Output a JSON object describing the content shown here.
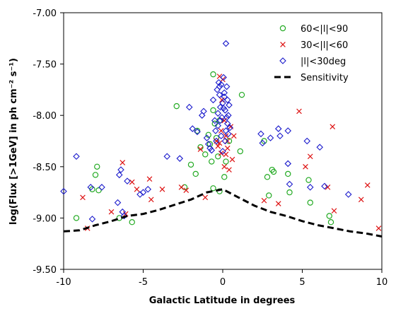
{
  "chart_data": {
    "type": "scatter",
    "title": "",
    "xlabel": "Galactic Latitude in degrees",
    "ylabel": "log(Flux [>1GeV] in ph cm⁻² s⁻¹)",
    "xlim": [
      -10,
      10
    ],
    "ylim": [
      -9.5,
      -7.0
    ],
    "xticks": [
      "-10",
      "-5",
      "0",
      "5",
      "10"
    ],
    "yticks": [
      "-9.50",
      "-9.00",
      "-8.50",
      "-8.00",
      "-7.50",
      "-7.00"
    ],
    "grid": false,
    "legend_placement": "top-right",
    "colors": {
      "green": "#22aa22",
      "red": "#dd1111",
      "blue": "#1a1acc",
      "sensitivity": "#000000"
    },
    "series": [
      {
        "name": "60<|l|<90",
        "marker": "circle",
        "points": [
          [
            -9.2,
            -9.0
          ],
          [
            -7.9,
            -8.5
          ],
          [
            -8.0,
            -8.58
          ],
          [
            -7.8,
            -8.73
          ],
          [
            -8.2,
            -8.72
          ],
          [
            -6.5,
            -9.0
          ],
          [
            -5.7,
            -9.04
          ],
          [
            -2.9,
            -7.91
          ],
          [
            -2.0,
            -8.48
          ],
          [
            -1.6,
            -8.15
          ],
          [
            -1.4,
            -8.31
          ],
          [
            -1.1,
            -8.38
          ],
          [
            -1.7,
            -8.57
          ],
          [
            -0.9,
            -8.19
          ],
          [
            -0.8,
            -8.28
          ],
          [
            -0.6,
            -7.95
          ],
          [
            -0.5,
            -8.08
          ],
          [
            -0.4,
            -8.22
          ],
          [
            -0.3,
            -8.4
          ],
          [
            -0.2,
            -8.05
          ],
          [
            -0.7,
            -8.45
          ],
          [
            -0.6,
            -7.6
          ],
          [
            -0.6,
            -8.71
          ],
          [
            -0.2,
            -8.74
          ],
          [
            0.1,
            -8.6
          ],
          [
            0.2,
            -8.45
          ],
          [
            0.4,
            -8.25
          ],
          [
            1.1,
            -8.35
          ],
          [
            1.2,
            -7.8
          ],
          [
            2.6,
            -8.25
          ],
          [
            2.8,
            -8.6
          ],
          [
            2.9,
            -8.78
          ],
          [
            3.1,
            -8.53
          ],
          [
            3.2,
            -8.55
          ],
          [
            4.1,
            -8.57
          ],
          [
            4.2,
            -8.75
          ],
          [
            5.4,
            -8.63
          ],
          [
            5.5,
            -8.85
          ],
          [
            6.7,
            -8.98
          ],
          [
            6.8,
            -9.04
          ],
          [
            -2.4,
            -8.7
          ]
        ]
      },
      {
        "name": "30<|l|<60",
        "marker": "x",
        "points": [
          [
            -8.8,
            -8.8
          ],
          [
            -8.5,
            -9.1
          ],
          [
            -7.0,
            -8.94
          ],
          [
            -6.1,
            -8.96
          ],
          [
            -6.3,
            -8.46
          ],
          [
            -5.7,
            -8.65
          ],
          [
            -5.4,
            -8.72
          ],
          [
            -4.6,
            -8.62
          ],
          [
            -4.5,
            -8.82
          ],
          [
            -3.8,
            -8.72
          ],
          [
            -2.6,
            -8.7
          ],
          [
            -2.3,
            -8.73
          ],
          [
            -1.4,
            -8.33
          ],
          [
            -1.1,
            -8.8
          ],
          [
            -0.3,
            -8.3
          ],
          [
            -0.2,
            -8.27
          ],
          [
            -0.1,
            -8.15
          ],
          [
            -0.2,
            -7.62
          ],
          [
            0.0,
            -7.65
          ],
          [
            -0.05,
            -7.85
          ],
          [
            0.1,
            -8.05
          ],
          [
            0.2,
            -8.2
          ],
          [
            0.3,
            -8.25
          ],
          [
            0.1,
            -8.5
          ],
          [
            0.4,
            -8.53
          ],
          [
            0.3,
            -8.32
          ],
          [
            0.6,
            -8.43
          ],
          [
            0.7,
            -8.2
          ],
          [
            0.2,
            -8.38
          ],
          [
            -0.4,
            -8.25
          ],
          [
            0.5,
            -8.11
          ],
          [
            -0.1,
            -8.37
          ],
          [
            2.6,
            -8.83
          ],
          [
            3.5,
            -8.86
          ],
          [
            4.8,
            -7.96
          ],
          [
            5.2,
            -8.5
          ],
          [
            5.5,
            -8.4
          ],
          [
            6.6,
            -8.7
          ],
          [
            7.0,
            -8.93
          ],
          [
            6.9,
            -8.11
          ],
          [
            8.7,
            -8.82
          ],
          [
            9.1,
            -8.68
          ],
          [
            9.8,
            -9.1
          ]
        ]
      },
      {
        "name": "|l|<30deg",
        "marker": "diamond",
        "points": [
          [
            -10.0,
            -8.74
          ],
          [
            -9.2,
            -8.4
          ],
          [
            -8.3,
            -8.7
          ],
          [
            -8.2,
            -9.01
          ],
          [
            -7.6,
            -8.7
          ],
          [
            -6.6,
            -8.85
          ],
          [
            -6.5,
            -8.58
          ],
          [
            -6.3,
            -8.94
          ],
          [
            -6.2,
            -8.98
          ],
          [
            -6.4,
            -8.53
          ],
          [
            -6.0,
            -8.64
          ],
          [
            -5.2,
            -8.77
          ],
          [
            -5.0,
            -8.75
          ],
          [
            -4.7,
            -8.72
          ],
          [
            -3.5,
            -8.4
          ],
          [
            -2.7,
            -8.42
          ],
          [
            -2.1,
            -7.92
          ],
          [
            -1.9,
            -8.13
          ],
          [
            -1.6,
            -8.16
          ],
          [
            -1.3,
            -8.0
          ],
          [
            -1.2,
            -7.96
          ],
          [
            -1.0,
            -8.22
          ],
          [
            -0.9,
            -8.28
          ],
          [
            -0.8,
            -8.32
          ],
          [
            -0.7,
            -8.34
          ],
          [
            -0.6,
            -7.85
          ],
          [
            -0.5,
            -8.05
          ],
          [
            -0.45,
            -8.15
          ],
          [
            -0.4,
            -8.25
          ],
          [
            -0.35,
            -7.75
          ],
          [
            -0.3,
            -7.98
          ],
          [
            -0.25,
            -7.68
          ],
          [
            -0.2,
            -7.8
          ],
          [
            -0.15,
            -7.92
          ],
          [
            -0.1,
            -7.7
          ],
          [
            -0.05,
            -8.02
          ],
          [
            0.0,
            -7.88
          ],
          [
            0.05,
            -7.63
          ],
          [
            0.1,
            -7.78
          ],
          [
            0.15,
            -7.95
          ],
          [
            0.2,
            -7.3
          ],
          [
            0.25,
            -7.72
          ],
          [
            0.3,
            -7.85
          ],
          [
            0.35,
            -8.0
          ],
          [
            0.4,
            -7.9
          ],
          [
            0.45,
            -8.12
          ],
          [
            0.15,
            -8.25
          ],
          [
            0.0,
            -8.35
          ],
          [
            -0.1,
            -8.2
          ],
          [
            0.2,
            -8.15
          ],
          [
            0.3,
            -8.08
          ],
          [
            0.1,
            -7.82
          ],
          [
            -0.2,
            -7.72
          ],
          [
            0.05,
            -7.93
          ],
          [
            -0.15,
            -8.05
          ],
          [
            0.25,
            -8.02
          ],
          [
            0.35,
            -8.18
          ],
          [
            -0.3,
            -8.1
          ],
          [
            2.4,
            -8.18
          ],
          [
            2.5,
            -8.27
          ],
          [
            3.0,
            -8.22
          ],
          [
            3.5,
            -8.13
          ],
          [
            3.6,
            -8.2
          ],
          [
            4.1,
            -8.15
          ],
          [
            4.1,
            -8.47
          ],
          [
            4.2,
            -8.67
          ],
          [
            5.3,
            -8.25
          ],
          [
            5.5,
            -8.7
          ],
          [
            6.1,
            -8.31
          ],
          [
            6.4,
            -8.69
          ],
          [
            7.9,
            -8.77
          ]
        ]
      },
      {
        "name": "Sensitivity",
        "marker": "dashed-line",
        "points": [
          [
            -10.0,
            -9.13
          ],
          [
            -9.0,
            -9.12
          ],
          [
            -8.0,
            -9.07
          ],
          [
            -7.0,
            -9.03
          ],
          [
            -6.0,
            -8.98
          ],
          [
            -5.0,
            -8.96
          ],
          [
            -4.0,
            -8.92
          ],
          [
            -3.0,
            -8.87
          ],
          [
            -2.0,
            -8.82
          ],
          [
            -1.0,
            -8.75
          ],
          [
            0.0,
            -8.72
          ],
          [
            1.0,
            -8.8
          ],
          [
            2.0,
            -8.88
          ],
          [
            3.0,
            -8.94
          ],
          [
            4.0,
            -8.98
          ],
          [
            5.0,
            -9.03
          ],
          [
            6.0,
            -9.07
          ],
          [
            7.0,
            -9.1
          ],
          [
            8.0,
            -9.13
          ],
          [
            9.0,
            -9.15
          ],
          [
            10.0,
            -9.18
          ]
        ]
      }
    ]
  }
}
